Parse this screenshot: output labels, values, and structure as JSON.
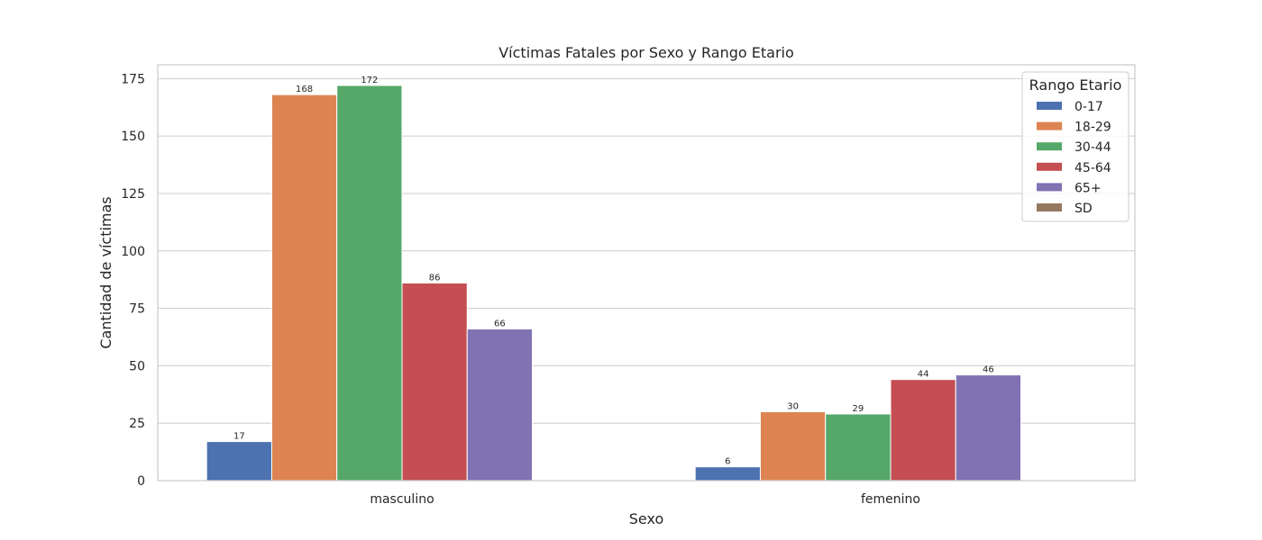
{
  "chart_data": {
    "type": "bar",
    "title": "Víctimas Fatales por Sexo y Rango Etario",
    "xlabel": "Sexo",
    "ylabel": "Cantidad de víctimas",
    "categories": [
      "masculino",
      "femenino"
    ],
    "ylim": [
      0,
      181
    ],
    "yticks": [
      0,
      25,
      50,
      75,
      100,
      125,
      150,
      175
    ],
    "grid": true,
    "legend": {
      "title": "Rango Etario",
      "placement": "top-right"
    },
    "series": [
      {
        "name": "0-17",
        "color": "#4c72b0",
        "values": [
          17,
          6
        ]
      },
      {
        "name": "18-29",
        "color": "#dd8452",
        "values": [
          168,
          30
        ]
      },
      {
        "name": "30-44",
        "color": "#55a868",
        "values": [
          172,
          29
        ]
      },
      {
        "name": "45-64",
        "color": "#c44e52",
        "values": [
          86,
          44
        ]
      },
      {
        "name": "65+",
        "color": "#8172b3",
        "values": [
          66,
          46
        ]
      },
      {
        "name": "SD",
        "color": "#937860",
        "values": [
          null,
          null
        ]
      }
    ]
  }
}
